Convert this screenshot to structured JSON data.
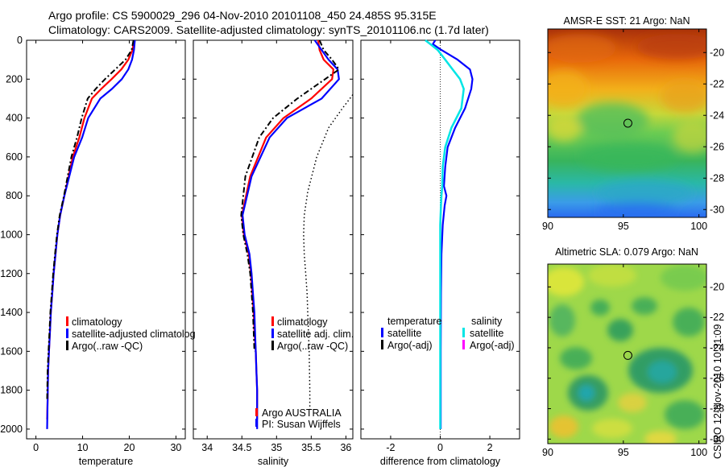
{
  "header": {
    "line1": "Argo profile: CS 5900029_296 04-Nov-2010 20101108_450 24.485S 95.315E",
    "line2": "Climatology: CARS2009. Satellite-adjusted climatology: synTS_20101106.nc (1.7d later)"
  },
  "side_label": "CSIRO 12-Nov-2010 10:31:09",
  "colors": {
    "climatology": "#ff0000",
    "satellite": "#0000ff",
    "argo": "#000000",
    "salinity_sat": "#00e5e5",
    "salinity_argo": "#ff00ff"
  },
  "chart_data": [
    {
      "id": "temperature",
      "type": "line",
      "xlabel": "temperature",
      "xlim": [
        -2,
        32
      ],
      "ylim": [
        2050,
        0
      ],
      "xticks": [
        "0",
        "10",
        "20",
        "30"
      ],
      "yticks": [
        "0",
        "200",
        "400",
        "600",
        "800",
        "1000",
        "1200",
        "1400",
        "1600",
        "1800",
        "2000"
      ],
      "legend": [
        "climatology",
        "satellite-adjusted climatolog",
        "Argo(..raw -QC)"
      ],
      "series": [
        {
          "name": "climatology",
          "x": [
            21.0,
            20.7,
            19.8,
            18.3,
            16.2,
            14.0,
            12.0,
            10.4,
            9.3,
            7.9,
            6.1,
            5.2,
            4.6,
            4.2,
            3.8,
            3.5,
            3.2,
            3.0,
            2.8,
            2.6,
            2.5,
            2.4
          ],
          "y": [
            0,
            50,
            100,
            150,
            200,
            250,
            300,
            400,
            500,
            600,
            800,
            900,
            1000,
            1100,
            1200,
            1300,
            1400,
            1500,
            1600,
            1700,
            1850,
            1950
          ]
        },
        {
          "name": "satellite-adjusted climatology",
          "x": [
            21.2,
            21.0,
            20.6,
            19.8,
            18.4,
            16.3,
            13.8,
            11.2,
            9.9,
            8.2,
            6.1,
            5.2,
            4.6,
            4.2,
            3.8,
            3.5,
            3.2,
            3.0,
            2.8,
            2.6,
            2.5,
            2.4
          ],
          "y": [
            0,
            50,
            100,
            150,
            200,
            250,
            300,
            400,
            500,
            600,
            800,
            900,
            1000,
            1100,
            1200,
            1300,
            1400,
            1500,
            1600,
            1700,
            1850,
            2000
          ]
        },
        {
          "name": "Argo",
          "x": [
            20.9,
            20.5,
            19.2,
            17.0,
            14.8,
            12.8,
            11.1,
            9.8,
            8.8,
            7.6,
            6.0,
            5.1,
            4.5,
            4.1,
            3.7,
            3.4,
            3.1,
            2.9,
            2.7,
            2.5,
            2.4
          ],
          "y": [
            0,
            50,
            100,
            150,
            200,
            250,
            300,
            400,
            500,
            600,
            800,
            900,
            1000,
            1100,
            1200,
            1300,
            1400,
            1500,
            1600,
            1700,
            1850
          ]
        }
      ],
      "annotations": []
    },
    {
      "id": "salinity",
      "type": "line",
      "xlabel": "salinity",
      "xlim": [
        33.8,
        36.1
      ],
      "ylim": [
        2050,
        0
      ],
      "xticks": [
        "34",
        "34.5",
        "35",
        "35.5",
        "36"
      ],
      "legend": [
        "climatology",
        "satellite adj. clim.",
        "Argo(..raw -QC)"
      ],
      "series": [
        {
          "name": "climatology",
          "x": [
            35.6,
            35.62,
            35.68,
            35.82,
            35.8,
            35.5,
            35.1,
            34.85,
            34.62,
            34.5,
            34.53,
            34.6,
            34.63,
            34.65,
            34.67,
            34.68,
            34.7,
            34.71,
            34.72,
            34.72
          ],
          "y": [
            0,
            50,
            100,
            150,
            200,
            300,
            400,
            500,
            700,
            900,
            1000,
            1100,
            1200,
            1300,
            1400,
            1500,
            1600,
            1700,
            1800,
            1950
          ]
        },
        {
          "name": "satellite-adjusted climatology",
          "x": [
            35.55,
            35.65,
            35.75,
            35.88,
            35.9,
            35.65,
            35.15,
            34.9,
            34.64,
            34.51,
            34.54,
            34.61,
            34.64,
            34.66,
            34.68,
            34.69,
            34.7,
            34.71,
            34.72,
            34.72
          ],
          "y": [
            0,
            50,
            100,
            150,
            200,
            300,
            400,
            500,
            700,
            900,
            1000,
            1100,
            1200,
            1300,
            1400,
            1500,
            1600,
            1700,
            1800,
            2000
          ]
        },
        {
          "name": "Argo",
          "x": [
            35.62,
            35.68,
            35.8,
            35.9,
            35.7,
            35.3,
            34.95,
            34.75,
            34.55,
            34.49,
            34.52,
            34.58,
            34.62,
            34.64,
            34.66,
            34.67,
            34.68
          ],
          "y": [
            0,
            50,
            100,
            150,
            200,
            300,
            400,
            500,
            700,
            900,
            1000,
            1100,
            1200,
            1300,
            1400,
            1500,
            1600
          ]
        },
        {
          "name": "dotted",
          "x": [
            36.1,
            35.95,
            35.75,
            35.58,
            35.45,
            35.4,
            35.39,
            35.4,
            35.42,
            35.44,
            35.45,
            35.46,
            35.47,
            35.48,
            35.48
          ],
          "y": [
            280,
            350,
            450,
            600,
            780,
            900,
            1000,
            1100,
            1200,
            1300,
            1400,
            1500,
            1600,
            1800,
            1900
          ]
        }
      ],
      "annotations": [
        "Argo AUSTRALIA",
        "PI: Susan Wijffels"
      ]
    },
    {
      "id": "difference",
      "type": "line",
      "xlabel": "difference from climatology",
      "xlim": [
        -3.2,
        3.2
      ],
      "ylim": [
        2050,
        0
      ],
      "xticks": [
        "-2",
        "0",
        "2"
      ],
      "legend_left_title": "temperature",
      "legend_right_title": "salinity",
      "legend_left": [
        "satellite",
        "Argo(-adj)"
      ],
      "legend_right": [
        "satellite",
        "Argo(-adj)"
      ],
      "series": [
        {
          "name": "temperature satellite",
          "x": [
            -0.2,
            -0.3,
            0.05,
            0.7,
            1.2,
            1.3,
            1.25,
            1.0,
            0.6,
            0.3,
            0.2,
            0.15,
            0.25,
            0.18,
            0.1,
            0.05,
            0.03,
            0.02,
            0.02
          ],
          "y": [
            0,
            20,
            50,
            100,
            150,
            200,
            250,
            350,
            450,
            550,
            650,
            750,
            800,
            850,
            950,
            1100,
            1300,
            1600,
            2000
          ]
        },
        {
          "name": "salinity satellite",
          "x": [
            -0.6,
            -0.4,
            -0.1,
            0.2,
            0.5,
            0.8,
            0.95,
            0.85,
            0.45,
            0.2,
            0.1,
            0.08,
            0.05,
            0.03,
            0.0,
            0.0,
            0.0,
            0.0,
            0.0
          ],
          "y": [
            0,
            20,
            50,
            100,
            150,
            200,
            250,
            350,
            450,
            550,
            650,
            750,
            800,
            850,
            950,
            1100,
            1300,
            1600,
            2000
          ]
        }
      ],
      "annotations": []
    },
    {
      "id": "sst_map",
      "type": "heatmap",
      "title": "AMSR-E SST: 21 Argo: NaN",
      "xlim": [
        90,
        100.5
      ],
      "ylim": [
        -30.5,
        -18.5
      ],
      "xticks": [
        "90",
        "95",
        "100"
      ],
      "yticks": [
        "-20",
        "-22",
        "-24",
        "-26",
        "-28",
        "-30"
      ],
      "marker": {
        "x": 95.3,
        "y": -24.5
      }
    },
    {
      "id": "sla_map",
      "type": "heatmap",
      "title": "Altimetric SLA: 0.079 Argo: NaN",
      "xlim": [
        90,
        100.5
      ],
      "ylim": [
        -30.3,
        -18.5
      ],
      "xticks": [
        "90",
        "95",
        "100"
      ],
      "yticks": [
        "-20",
        "-22",
        "-24",
        "-26",
        "-28",
        "-30"
      ],
      "marker": {
        "x": 95.3,
        "y": -24.5
      }
    }
  ]
}
